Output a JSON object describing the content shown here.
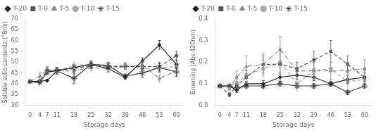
{
  "chart_data": [
    {
      "type": "line",
      "xlabel": "Storage days",
      "ylabel": "Soluble solid contents (°Brix)",
      "x": [
        0,
        4,
        7,
        11,
        18,
        25,
        32,
        39,
        46,
        53,
        60
      ],
      "xlim": [
        -2,
        63
      ],
      "xticks": [
        0,
        4,
        7,
        11,
        18,
        25,
        32,
        39,
        46,
        53,
        60
      ],
      "ylim": [
        30,
        70
      ],
      "yticks": [
        30,
        35,
        40,
        45,
        50,
        55,
        60,
        65,
        70
      ],
      "grid": false,
      "legend": "upper left",
      "series": [
        {
          "name": "T-20",
          "color": "#222222",
          "marker": "diamond",
          "line_style": "solid",
          "values": [
            41.0,
            41.2,
            41.5,
            46.0,
            47.5,
            49.0,
            47.0,
            43.0,
            50.5,
            58.0,
            49.0
          ],
          "errors": [
            0.3,
            0.4,
            0.5,
            1.0,
            1.2,
            1.5,
            1.5,
            1.0,
            1.5,
            2.0,
            2.0
          ]
        },
        {
          "name": "T-0",
          "color": "#555555",
          "marker": "square",
          "line_style": "dashed",
          "values": [
            41.0,
            41.0,
            46.0,
            46.5,
            47.0,
            48.5,
            48.0,
            48.0,
            48.0,
            48.0,
            53.0
          ],
          "errors": [
            0.3,
            0.5,
            1.5,
            1.0,
            1.5,
            1.5,
            1.5,
            1.5,
            2.0,
            2.0,
            2.0
          ]
        },
        {
          "name": "T-5",
          "color": "#888888",
          "marker": "triangle",
          "line_style": "dashdot",
          "values": [
            41.0,
            43.5,
            46.5,
            46.0,
            46.0,
            47.5,
            47.0,
            48.0,
            48.5,
            42.5,
            46.0
          ],
          "errors": [
            0.3,
            1.5,
            1.5,
            1.5,
            1.5,
            1.5,
            1.5,
            1.5,
            2.0,
            1.5,
            2.0
          ]
        },
        {
          "name": "T-10",
          "color": "#aaaaaa",
          "marker": "circle",
          "line_style": "dashed",
          "values": [
            41.0,
            41.5,
            46.5,
            46.0,
            48.5,
            49.0,
            48.0,
            48.5,
            47.0,
            47.5,
            48.0
          ],
          "errors": [
            0.3,
            0.5,
            1.5,
            1.0,
            1.5,
            1.5,
            1.5,
            1.5,
            2.0,
            2.0,
            2.0
          ]
        },
        {
          "name": "T-15",
          "color": "#333333",
          "marker": "star",
          "line_style": "solid",
          "values": [
            41.0,
            40.5,
            45.5,
            46.0,
            42.5,
            49.0,
            48.5,
            43.5,
            45.0,
            47.5,
            45.5
          ],
          "errors": [
            0.3,
            0.5,
            1.0,
            1.5,
            2.5,
            1.5,
            1.5,
            1.0,
            2.0,
            2.0,
            2.0
          ]
        }
      ]
    },
    {
      "type": "line",
      "xlabel": "Storage days",
      "ylabel": "Browning (Abs 420nm)",
      "x": [
        0,
        4,
        7,
        11,
        18,
        25,
        32,
        39,
        46,
        53,
        60
      ],
      "xlim": [
        -2,
        63
      ],
      "xticks": [
        0,
        4,
        7,
        11,
        18,
        25,
        32,
        39,
        46,
        53,
        60
      ],
      "ylim": [
        0.0,
        0.4
      ],
      "yticks": [
        {
          "value": 0.0,
          "label": "0.0"
        },
        0.1,
        0.2,
        0.3,
        0.4
      ],
      "grid": false,
      "legend": "upper left",
      "series": [
        {
          "name": "T-20",
          "color": "#222222",
          "marker": "diamond",
          "line_style": "solid",
          "values": [
            0.09,
            0.09,
            0.07,
            0.1,
            0.1,
            0.13,
            0.14,
            0.13,
            0.1,
            0.12,
            0.13
          ],
          "errors": [
            0.005,
            0.005,
            0.01,
            0.01,
            0.015,
            0.02,
            0.02,
            0.015,
            0.01,
            0.02,
            0.02
          ]
        },
        {
          "name": "T-0",
          "color": "#555555",
          "marker": "square",
          "line_style": "dashed",
          "values": [
            0.09,
            0.05,
            0.09,
            0.13,
            0.19,
            0.19,
            0.17,
            0.21,
            0.25,
            0.19,
            0.13
          ],
          "errors": [
            0.005,
            0.01,
            0.02,
            0.03,
            0.04,
            0.06,
            0.03,
            0.04,
            0.05,
            0.04,
            0.03
          ]
        },
        {
          "name": "T-5",
          "color": "#888888",
          "marker": "triangle",
          "line_style": "dashdot",
          "values": [
            0.09,
            0.08,
            0.13,
            0.18,
            0.19,
            0.26,
            0.16,
            0.16,
            0.16,
            0.16,
            0.17
          ],
          "errors": [
            0.005,
            0.01,
            0.03,
            0.05,
            0.05,
            0.06,
            0.04,
            0.04,
            0.04,
            0.04,
            0.04
          ]
        },
        {
          "name": "T-10",
          "color": "#aaaaaa",
          "marker": "circle",
          "line_style": "dashed",
          "values": [
            0.09,
            0.09,
            0.1,
            0.14,
            0.17,
            0.2,
            0.1,
            0.16,
            0.17,
            0.11,
            0.12
          ],
          "errors": [
            0.005,
            0.01,
            0.02,
            0.04,
            0.04,
            0.05,
            0.03,
            0.04,
            0.06,
            0.04,
            0.03
          ]
        },
        {
          "name": "T-15",
          "color": "#333333",
          "marker": "star",
          "line_style": "solid",
          "values": [
            0.09,
            0.09,
            0.08,
            0.09,
            0.09,
            0.1,
            0.09,
            0.09,
            0.1,
            0.06,
            0.09
          ],
          "errors": [
            0.005,
            0.005,
            0.01,
            0.01,
            0.01,
            0.01,
            0.01,
            0.01,
            0.01,
            0.01,
            0.01
          ]
        }
      ]
    }
  ]
}
